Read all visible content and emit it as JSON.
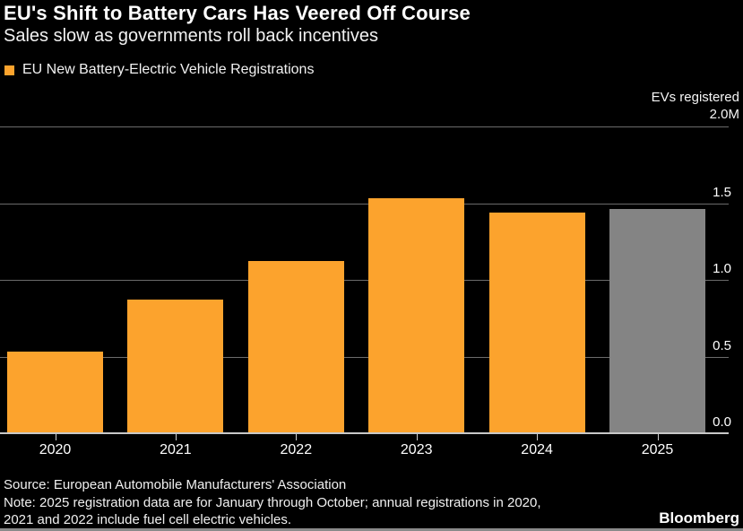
{
  "header": {
    "title": "EU's Shift to Battery Cars Has Veered Off Course",
    "subtitle": "Sales slow as governments roll back incentives"
  },
  "legend": {
    "label": "EU New Battery-Electric Vehicle Registrations",
    "swatch_color": "#FCA32D"
  },
  "axis_header": {
    "line1": "EVs registered",
    "line2": "2.0M"
  },
  "chart_data": {
    "type": "bar",
    "title": "EU New Battery-Electric Vehicle Registrations",
    "categories": [
      "2020",
      "2021",
      "2022",
      "2023",
      "2024",
      "2025"
    ],
    "values": [
      0.53,
      0.87,
      1.12,
      1.53,
      1.44,
      1.46
    ],
    "unit": "M",
    "ylabel": "EVs registered",
    "ylim": [
      0,
      2.0
    ],
    "yticks": [
      0.0,
      0.5,
      1.0,
      1.5,
      2.0
    ],
    "ytick_labels": [
      "0.0",
      "0.5",
      "1.0",
      "1.5",
      ""
    ],
    "top_tick_label": "2.0M",
    "bar_colors": [
      "#FCA32D",
      "#FCA32D",
      "#FCA32D",
      "#FCA32D",
      "#FCA32D",
      "#848484"
    ],
    "grid": true,
    "legend_position": "top-left"
  },
  "colors": {
    "background": "#000000",
    "bar_orange": "#FCA32D",
    "bar_gray": "#848484",
    "gridline": "#6b6b6b",
    "baseline": "#c8c8c8",
    "text": "#ffffff"
  },
  "footer": {
    "source": "Source: European Automobile Manufacturers' Association",
    "note_line1": "Note: 2025 registration data are for January through October; annual registrations in 2020,",
    "note_line2": "2021 and 2022 include fuel cell electric vehicles.",
    "brand": "Bloomberg"
  }
}
